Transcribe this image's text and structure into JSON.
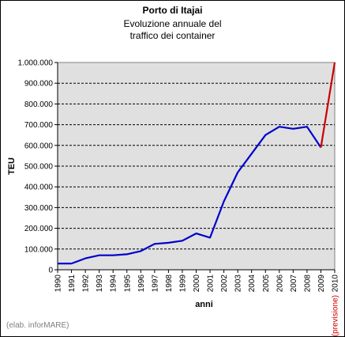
{
  "chart_data": {
    "type": "line",
    "title": "Porto di Itajai",
    "subtitle": [
      "Evoluzione annuale del",
      "traffico dei container"
    ],
    "xlabel": "anni",
    "ylabel": "TEU",
    "ylim": [
      0,
      1000000
    ],
    "y_ticks": [
      "0",
      "100.000",
      "200.000",
      "300.000",
      "400.000",
      "500.000",
      "600.000",
      "700.000",
      "800.000",
      "900.000",
      "1.000.000"
    ],
    "x": [
      "1990",
      "1991",
      "1992",
      "1993",
      "1994",
      "1995",
      "1996",
      "1997",
      "1998",
      "1999",
      "2000",
      "2001",
      "2002",
      "2003",
      "2004",
      "2005",
      "2006",
      "2007",
      "2008",
      "2009",
      "2010"
    ],
    "forecast_tick_note": "(previsione)",
    "grid": "horizontal dashed",
    "series": [
      {
        "x": [
          "1990",
          "1991",
          "1992",
          "1993",
          "1994",
          "1995",
          "1996",
          "1997",
          "1998",
          "1999",
          "2000",
          "2001",
          "2002",
          "2003",
          "2004",
          "2005",
          "2006",
          "2007",
          "2008",
          "2009"
        ],
        "values": [
          30000,
          30000,
          55000,
          70000,
          70000,
          75000,
          90000,
          125000,
          130000,
          140000,
          175000,
          155000,
          330000,
          470000,
          560000,
          650000,
          690000,
          680000,
          690000,
          590000
        ],
        "color": "#0000cc"
      },
      {
        "x": [
          "2009",
          "2010"
        ],
        "values": [
          590000,
          1000000
        ],
        "color": "#cc0000"
      }
    ],
    "plot_background": "#e0e0e0"
  },
  "footer": {
    "source": "(elab. inforMARE)"
  }
}
